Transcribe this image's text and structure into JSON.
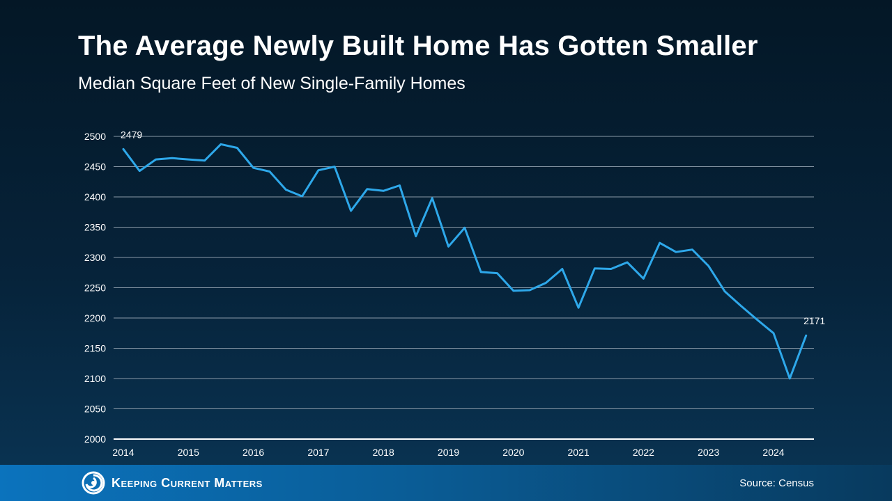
{
  "header": {
    "title": "The Average Newly Built Home Has Gotten Smaller",
    "subtitle": "Median Square Feet of New Single-Family Homes"
  },
  "footer": {
    "brand": "Keeping Current Matters",
    "source": "Source: Census"
  },
  "colors": {
    "line": "#2ea8ea",
    "grid": "#8a9aa8",
    "footer_start": "#0b73bd",
    "footer_end": "#083a5e"
  },
  "chart_data": {
    "type": "line",
    "title": "The Average Newly Built Home Has Gotten Smaller",
    "subtitle": "Median Square Feet of New Single-Family Homes",
    "xlabel": "",
    "ylabel": "",
    "ylim": [
      2000,
      2500
    ],
    "yticks": [
      2000,
      2050,
      2100,
      2150,
      2200,
      2250,
      2300,
      2350,
      2400,
      2450,
      2500
    ],
    "x_tick_labels": [
      "2014",
      "2015",
      "2016",
      "2017",
      "2018",
      "2019",
      "2020",
      "2021",
      "2022",
      "2023",
      "2024"
    ],
    "x_start_year": 2014,
    "points_per_year": 4,
    "grid": true,
    "legend": "none",
    "series": [
      {
        "values": [
          2479,
          2443,
          2462,
          2464,
          2462,
          2460,
          2487,
          2481,
          2448,
          2442,
          2412,
          2401,
          2444,
          2450,
          2377,
          2413,
          2410,
          2419,
          2335,
          2398,
          2318,
          2349,
          2276,
          2274,
          2245,
          2246,
          2258,
          2281,
          2217,
          2282,
          2281,
          2292,
          2265,
          2324,
          2309,
          2313,
          2286,
          2244,
          2220,
          2197,
          2175,
          2100,
          2171
        ]
      }
    ],
    "annotations": [
      {
        "index": 0,
        "text": "2479"
      },
      {
        "index": 42,
        "text": "2171"
      }
    ]
  }
}
